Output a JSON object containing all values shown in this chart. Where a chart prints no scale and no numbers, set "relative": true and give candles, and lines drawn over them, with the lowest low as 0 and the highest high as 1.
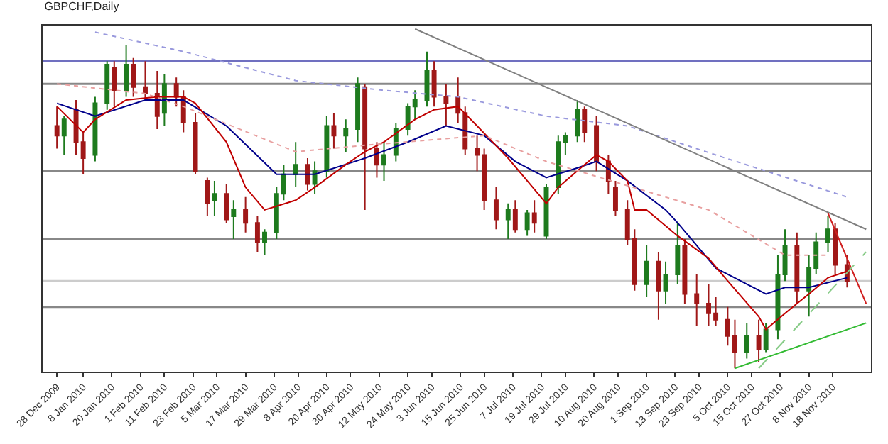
{
  "chart_data": {
    "type": "candlestick",
    "title": "GBPCHF,Daily",
    "relative": true,
    "x": [
      "2009-12-28",
      "2009-12-31",
      "2010-01-05",
      "2010-01-08",
      "2010-01-13",
      "2010-01-18",
      "2010-01-21",
      "2010-01-26",
      "2010-01-29",
      "2010-02-03",
      "2010-02-08",
      "2010-02-11",
      "2010-02-16",
      "2010-02-19",
      "2010-02-24",
      "2010-03-01",
      "2010-03-04",
      "2010-03-09",
      "2010-03-12",
      "2010-03-17",
      "2010-03-22",
      "2010-03-25",
      "2010-03-30",
      "2010-04-02",
      "2010-04-07",
      "2010-04-12",
      "2010-04-15",
      "2010-04-20",
      "2010-04-23",
      "2010-04-28",
      "2010-05-03",
      "2010-05-06",
      "2010-05-11",
      "2010-05-14",
      "2010-05-19",
      "2010-05-24",
      "2010-05-27",
      "2010-06-01",
      "2010-06-04",
      "2010-06-09",
      "2010-06-14",
      "2010-06-17",
      "2010-06-22",
      "2010-06-25",
      "2010-06-30",
      "2010-07-05",
      "2010-07-08",
      "2010-07-13",
      "2010-07-16",
      "2010-07-21",
      "2010-07-26",
      "2010-07-29",
      "2010-08-03",
      "2010-08-06",
      "2010-08-11",
      "2010-08-16",
      "2010-08-19",
      "2010-08-24",
      "2010-08-27",
      "2010-09-01",
      "2010-09-06",
      "2010-09-09",
      "2010-09-14",
      "2010-09-17",
      "2010-09-22",
      "2010-09-27",
      "2010-09-30",
      "2010-10-05",
      "2010-10-08",
      "2010-10-13",
      "2010-10-18",
      "2010-10-21",
      "2010-10-26",
      "2010-10-29",
      "2010-11-03",
      "2010-11-08",
      "2010-11-11",
      "2010-11-16",
      "2010-11-19",
      "2010-11-24"
    ],
    "ohlc": [
      [
        0.75,
        0.81,
        0.68,
        0.72
      ],
      [
        0.72,
        0.78,
        0.66,
        0.77
      ],
      [
        0.8,
        0.83,
        0.66,
        0.7
      ],
      [
        0.7,
        0.73,
        0.6,
        0.65
      ],
      [
        0.66,
        0.84,
        0.64,
        0.82
      ],
      [
        0.82,
        0.95,
        0.8,
        0.94
      ],
      [
        0.93,
        0.95,
        0.81,
        0.86
      ],
      [
        0.86,
        1.0,
        0.84,
        0.94
      ],
      [
        0.94,
        0.96,
        0.84,
        0.87
      ],
      [
        0.87,
        0.95,
        0.83,
        0.85
      ],
      [
        0.85,
        0.92,
        0.74,
        0.78
      ],
      [
        0.79,
        0.91,
        0.75,
        0.88
      ],
      [
        0.88,
        0.9,
        0.81,
        0.84
      ],
      [
        0.84,
        0.86,
        0.73,
        0.76
      ],
      [
        0.76,
        0.79,
        0.6,
        0.61
      ],
      [
        0.58,
        0.59,
        0.47,
        0.51
      ],
      [
        0.52,
        0.58,
        0.47,
        0.54
      ],
      [
        0.54,
        0.57,
        0.45,
        0.46
      ],
      [
        0.47,
        0.52,
        0.4,
        0.49
      ],
      [
        0.49,
        0.53,
        0.42,
        0.45
      ],
      [
        0.45,
        0.47,
        0.36,
        0.39
      ],
      [
        0.39,
        0.43,
        0.35,
        0.42
      ],
      [
        0.42,
        0.56,
        0.4,
        0.54
      ],
      [
        0.54,
        0.63,
        0.52,
        0.6
      ],
      [
        0.6,
        0.7,
        0.56,
        0.63
      ],
      [
        0.63,
        0.65,
        0.55,
        0.57
      ],
      [
        0.57,
        0.64,
        0.54,
        0.61
      ],
      [
        0.61,
        0.78,
        0.59,
        0.75
      ],
      [
        0.75,
        0.79,
        0.68,
        0.72
      ],
      [
        0.72,
        0.77,
        0.67,
        0.74
      ],
      [
        0.74,
        0.9,
        0.7,
        0.88
      ],
      [
        0.87,
        0.88,
        0.49,
        0.68
      ],
      [
        0.68,
        0.7,
        0.59,
        0.63
      ],
      [
        0.63,
        0.7,
        0.58,
        0.66
      ],
      [
        0.66,
        0.76,
        0.64,
        0.74
      ],
      [
        0.74,
        0.82,
        0.72,
        0.81
      ],
      [
        0.81,
        0.86,
        0.77,
        0.83
      ],
      [
        0.83,
        0.98,
        0.81,
        0.92
      ],
      [
        0.92,
        0.95,
        0.81,
        0.84
      ],
      [
        0.84,
        0.88,
        0.75,
        0.82
      ],
      [
        0.84,
        0.9,
        0.76,
        0.79
      ],
      [
        0.79,
        0.81,
        0.66,
        0.68
      ],
      [
        0.68,
        0.72,
        0.61,
        0.66
      ],
      [
        0.66,
        0.68,
        0.49,
        0.52
      ],
      [
        0.52,
        0.56,
        0.43,
        0.46
      ],
      [
        0.46,
        0.51,
        0.4,
        0.49
      ],
      [
        0.49,
        0.52,
        0.42,
        0.43
      ],
      [
        0.43,
        0.49,
        0.41,
        0.48
      ],
      [
        0.48,
        0.52,
        0.42,
        0.45
      ],
      [
        0.41,
        0.57,
        0.4,
        0.56
      ],
      [
        0.56,
        0.72,
        0.54,
        0.7
      ],
      [
        0.7,
        0.73,
        0.66,
        0.72
      ],
      [
        0.72,
        0.83,
        0.7,
        0.8
      ],
      [
        0.8,
        0.81,
        0.7,
        0.73
      ],
      [
        0.75,
        0.78,
        0.61,
        0.64
      ],
      [
        0.64,
        0.66,
        0.54,
        0.58
      ],
      [
        0.56,
        0.58,
        0.47,
        0.49
      ],
      [
        0.49,
        0.52,
        0.38,
        0.4
      ],
      [
        0.4,
        0.43,
        0.24,
        0.26
      ],
      [
        0.26,
        0.38,
        0.22,
        0.33
      ],
      [
        0.33,
        0.36,
        0.15,
        0.24
      ],
      [
        0.24,
        0.33,
        0.2,
        0.29
      ],
      [
        0.29,
        0.45,
        0.26,
        0.38
      ],
      [
        0.38,
        0.4,
        0.2,
        0.23
      ],
      [
        0.23,
        0.29,
        0.13,
        0.2
      ],
      [
        0.2,
        0.26,
        0.13,
        0.17
      ],
      [
        0.17,
        0.22,
        0.13,
        0.15
      ],
      [
        0.15,
        0.19,
        0.07,
        0.1
      ],
      [
        0.1,
        0.15,
        0.0,
        0.05
      ],
      [
        0.05,
        0.14,
        0.03,
        0.1
      ],
      [
        0.1,
        0.15,
        0.02,
        0.06
      ],
      [
        0.06,
        0.14,
        0.05,
        0.12
      ],
      [
        0.12,
        0.35,
        0.09,
        0.29
      ],
      [
        0.29,
        0.43,
        0.27,
        0.38
      ],
      [
        0.38,
        0.42,
        0.2,
        0.24
      ],
      [
        0.24,
        0.35,
        0.16,
        0.31
      ],
      [
        0.31,
        0.42,
        0.29,
        0.39
      ],
      [
        0.39,
        0.47,
        0.36,
        0.43
      ],
      [
        0.43,
        0.45,
        0.29,
        0.32
      ],
      [
        0.32,
        0.35,
        0.25,
        0.27
      ]
    ],
    "series": [
      {
        "type": "line",
        "color": "#00008b",
        "x": [
          "2009-12-28",
          "2010-01-13",
          "2010-02-03",
          "2010-02-19",
          "2010-03-09",
          "2010-03-30",
          "2010-04-15",
          "2010-05-06",
          "2010-05-24",
          "2010-06-09",
          "2010-06-25",
          "2010-07-08",
          "2010-07-21",
          "2010-08-03",
          "2010-08-11",
          "2010-08-24",
          "2010-09-09",
          "2010-09-14",
          "2010-09-30",
          "2010-10-21",
          "2010-10-29",
          "2010-11-08",
          "2010-11-24"
        ],
        "values": [
          0.82,
          0.78,
          0.83,
          0.83,
          0.75,
          0.6,
          0.6,
          0.65,
          0.7,
          0.75,
          0.72,
          0.64,
          0.59,
          0.62,
          0.64,
          0.58,
          0.49,
          0.45,
          0.31,
          0.23,
          0.25,
          0.25,
          0.28
        ]
      },
      {
        "type": "line",
        "color": "#c00000",
        "x": [
          "2009-12-28",
          "2010-01-08",
          "2010-01-13",
          "2010-01-26",
          "2010-02-08",
          "2010-02-19",
          "2010-02-24",
          "2010-03-09",
          "2010-03-17",
          "2010-03-25",
          "2010-04-07",
          "2010-04-15",
          "2010-04-28",
          "2010-05-06",
          "2010-05-14",
          "2010-05-27",
          "2010-06-04",
          "2010-06-14",
          "2010-06-22",
          "2010-07-05",
          "2010-07-13",
          "2010-07-21",
          "2010-07-26",
          "2010-08-06",
          "2010-08-11",
          "2010-08-16",
          "2010-08-24",
          "2010-08-27",
          "2010-09-01",
          "2010-09-14",
          "2010-09-27",
          "2010-10-05",
          "2010-10-18",
          "2010-10-21",
          "2010-10-29",
          "2010-11-03",
          "2010-11-08",
          "2010-11-16",
          "2010-11-24"
        ],
        "values": [
          0.81,
          0.73,
          0.77,
          0.83,
          0.84,
          0.84,
          0.82,
          0.7,
          0.56,
          0.49,
          0.52,
          0.56,
          0.63,
          0.67,
          0.7,
          0.77,
          0.8,
          0.81,
          0.75,
          0.65,
          0.58,
          0.51,
          0.56,
          0.63,
          0.66,
          0.64,
          0.58,
          0.49,
          0.49,
          0.41,
          0.34,
          0.27,
          0.16,
          0.12,
          0.17,
          0.2,
          0.23,
          0.28,
          0.3
        ]
      },
      {
        "type": "line",
        "color": "#e8a0a0",
        "line_style": "dotted",
        "x": [
          "2009-12-28",
          "2010-02-03",
          "2010-02-19",
          "2010-04-07",
          "2010-05-06",
          "2010-06-25",
          "2010-07-21",
          "2010-09-27",
          "2010-10-29",
          "2010-11-16"
        ],
        "values": [
          0.88,
          0.85,
          0.81,
          0.67,
          0.69,
          0.72,
          0.64,
          0.49,
          0.35,
          0.35
        ]
      },
      {
        "type": "line",
        "color": "#9999dd",
        "line_style": "dotted",
        "x": [
          "2010-01-13",
          "2010-02-19",
          "2010-04-07",
          "2010-05-14",
          "2010-06-14",
          "2010-07-21",
          "2010-08-24",
          "2010-09-30",
          "2010-11-24"
        ],
        "values": [
          1.04,
          0.98,
          0.89,
          0.86,
          0.84,
          0.78,
          0.75,
          0.66,
          0.53
        ]
      },
      {
        "type": "line",
        "color": "#808080",
        "x": [
          "2010-05-27",
          "2010-12-02"
        ],
        "values": [
          1.05,
          0.43
        ]
      },
      {
        "type": "line",
        "color": "#d02020",
        "x": [
          "2010-11-16",
          "2010-12-02"
        ],
        "values": [
          0.48,
          0.2
        ]
      },
      {
        "type": "line",
        "color": "#33bb33",
        "x": [
          "2010-10-08",
          "2010-12-02"
        ],
        "values": [
          0.0,
          0.14
        ]
      },
      {
        "type": "line",
        "color": "#88cc88",
        "line_style": "dashed",
        "x": [
          "2010-10-18",
          "2010-12-02"
        ],
        "values": [
          0.0,
          0.36
        ]
      }
    ],
    "ref_lines": [
      {
        "axis": "y",
        "value": 0.95,
        "color": "#7070c0"
      },
      {
        "axis": "y",
        "value": 0.88,
        "color": "#888888"
      },
      {
        "axis": "y",
        "value": 0.61,
        "color": "#888888"
      },
      {
        "axis": "y",
        "value": 0.4,
        "color": "#888888"
      },
      {
        "axis": "y",
        "value": 0.27,
        "color": "#cccccc"
      },
      {
        "axis": "y",
        "value": 0.19,
        "color": "#888888"
      }
    ],
    "xlim": [
      "2009-12-22",
      "2010-12-04"
    ],
    "xticks": [
      {
        "value": "2009-12-28",
        "label": "28 Dec 2009"
      },
      {
        "value": "2010-01-08",
        "label": "8 Jan 2010"
      },
      {
        "value": "2010-01-20",
        "label": "20 Jan 2010"
      },
      {
        "value": "2010-02-01",
        "label": "1 Feb 2010"
      },
      {
        "value": "2010-02-11",
        "label": "11 Feb 2010"
      },
      {
        "value": "2010-02-23",
        "label": "23 Feb 2010"
      },
      {
        "value": "2010-03-05",
        "label": "5 Mar 2010"
      },
      {
        "value": "2010-03-17",
        "label": "17 Mar 2010"
      },
      {
        "value": "2010-03-29",
        "label": "29 Mar 2010"
      },
      {
        "value": "2010-04-08",
        "label": "8 Apr 2010"
      },
      {
        "value": "2010-04-20",
        "label": "20 Apr 2010"
      },
      {
        "value": "2010-04-30",
        "label": "30 Apr 2010"
      },
      {
        "value": "2010-05-12",
        "label": "12 May 2010"
      },
      {
        "value": "2010-05-24",
        "label": "24 May 2010"
      },
      {
        "value": "2010-06-03",
        "label": "3 Jun 2010"
      },
      {
        "value": "2010-06-15",
        "label": "15 Jun 2010"
      },
      {
        "value": "2010-06-25",
        "label": "25 Jun 2010"
      },
      {
        "value": "2010-07-07",
        "label": "7 Jul 2010"
      },
      {
        "value": "2010-07-19",
        "label": "19 Jul 2010"
      },
      {
        "value": "2010-07-29",
        "label": "29 Jul 2010"
      },
      {
        "value": "2010-08-10",
        "label": "10 Aug 2010"
      },
      {
        "value": "2010-08-20",
        "label": "20 Aug 2010"
      },
      {
        "value": "2010-09-01",
        "label": "1 Sep 2010"
      },
      {
        "value": "2010-09-13",
        "label": "13 Sep 2010"
      },
      {
        "value": "2010-09-23",
        "label": "23 Sep 2010"
      },
      {
        "value": "2010-10-05",
        "label": "5 Oct 2010"
      },
      {
        "value": "2010-10-15",
        "label": "15 Oct 2010"
      },
      {
        "value": "2010-10-27",
        "label": "27 Oct 2010"
      },
      {
        "value": "2010-11-08",
        "label": "8 Nov 2010"
      },
      {
        "value": "2010-11-18",
        "label": "18 Nov 2010"
      }
    ]
  }
}
